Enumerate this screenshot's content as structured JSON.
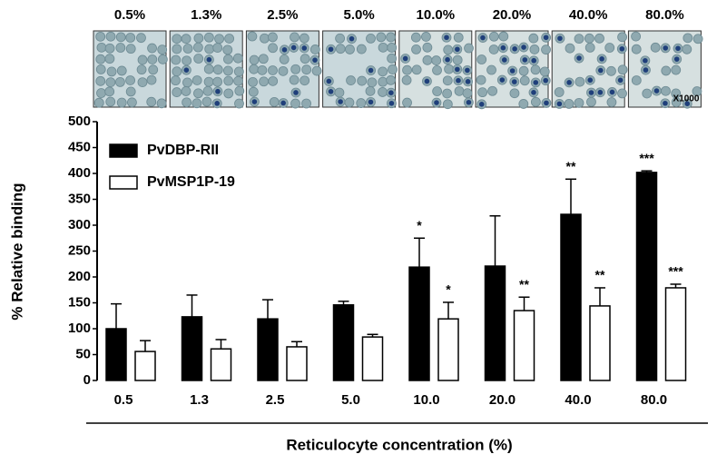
{
  "micrographs": {
    "labels": [
      "0.5%",
      "1.3%",
      "2.5%",
      "5.0%",
      "10.0%",
      "20.0%",
      "40.0%",
      "80.0%"
    ],
    "magnification": "X1000"
  },
  "chart_data": {
    "type": "bar",
    "x_label": "Reticulocyte concentration (%)",
    "y_label": "% Relative binding",
    "categories": [
      "0.5",
      "1.3",
      "2.5",
      "5.0",
      "10.0",
      "20.0",
      "40.0",
      "80.0"
    ],
    "series": [
      {
        "name": "PvDBP-RII",
        "color": "#000000",
        "values": [
          100,
          123,
          119,
          146,
          219,
          221,
          321,
          402
        ],
        "errors": [
          48,
          42,
          37,
          7,
          56,
          97,
          68,
          3
        ],
        "significance": [
          null,
          null,
          null,
          null,
          "*",
          null,
          "**",
          "***"
        ]
      },
      {
        "name": "PvMSP1P-19",
        "color": "#ffffff",
        "values": [
          56,
          61,
          65,
          84,
          119,
          135,
          144,
          179
        ],
        "errors": [
          21,
          18,
          10,
          5,
          32,
          26,
          35,
          7
        ],
        "significance": [
          null,
          null,
          null,
          null,
          "*",
          "**",
          "**",
          "***"
        ]
      }
    ],
    "ylim": [
      0,
      500
    ],
    "yticks": [
      0,
      50,
      100,
      150,
      200,
      250,
      300,
      350,
      400,
      450,
      500
    ]
  }
}
